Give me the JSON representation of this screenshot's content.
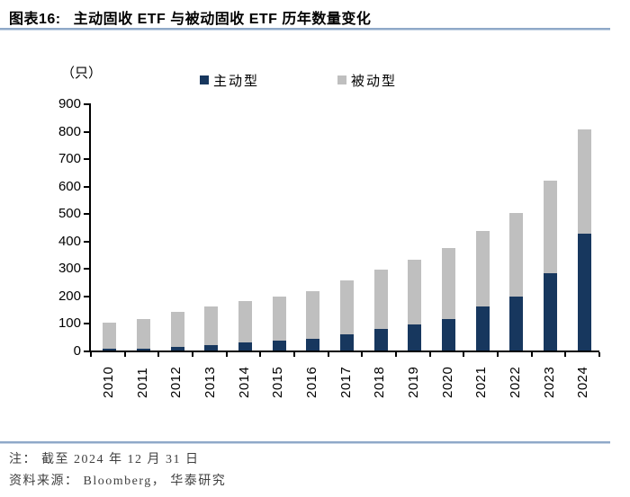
{
  "figure": {
    "title_label": "图表16:",
    "title_text": "主动固收 ETF 与被动固收 ETF 历年数量变化",
    "unit_label": "（只）",
    "note": "注： 截至 2024 年 12 月 31 日",
    "source": "资料来源： Bloomberg， 华泰研究"
  },
  "colors": {
    "active_series": "#17375E",
    "passive_series": "#BFBFBF",
    "rule": "#8FA9C8",
    "axis": "#000000",
    "footer_text": "#3F3F3F"
  },
  "chart_data": {
    "type": "bar",
    "stacked": true,
    "title": "主动固收ETF与被动固收ETF历年数量变化",
    "unit": "只",
    "categories": [
      "2010",
      "2011",
      "2012",
      "2013",
      "2014",
      "2015",
      "2016",
      "2017",
      "2018",
      "2019",
      "2020",
      "2021",
      "2022",
      "2023",
      "2024"
    ],
    "series": [
      {
        "name": "主动型",
        "color": "#17375E",
        "values": [
          5,
          7,
          12,
          20,
          28,
          35,
          42,
          60,
          80,
          95,
          115,
          160,
          195,
          280,
          425
        ]
      },
      {
        "name": "被动型",
        "color": "#BFBFBF",
        "values": [
          95,
          108,
          128,
          140,
          152,
          160,
          173,
          195,
          215,
          235,
          257,
          275,
          305,
          340,
          380
        ]
      }
    ],
    "totals": [
      100,
      115,
      140,
      160,
      180,
      195,
      215,
      255,
      295,
      330,
      372,
      435,
      500,
      620,
      805
    ],
    "xlabel": "",
    "ylabel": "（只）",
    "ylim": [
      0,
      900
    ],
    "ytick_step": 100,
    "grid": false,
    "legend_position": "top"
  }
}
